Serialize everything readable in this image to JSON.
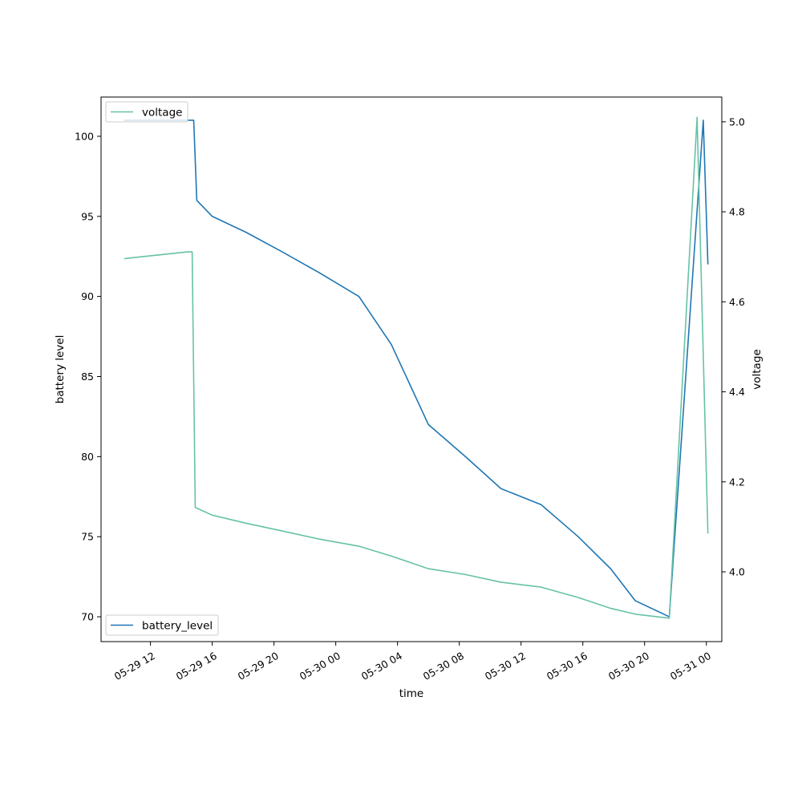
{
  "chart_data": {
    "type": "line",
    "xlabel": "time",
    "ylabel_left": "battery level",
    "ylabel_right": "voltage",
    "x_range": [
      "2025-05-29T08:48",
      "2025-05-31T01:00"
    ],
    "x_ticks": [
      {
        "t": "2025-05-29T12:00",
        "label": "05-29 12"
      },
      {
        "t": "2025-05-29T16:00",
        "label": "05-29 16"
      },
      {
        "t": "2025-05-29T20:00",
        "label": "05-29 20"
      },
      {
        "t": "2025-05-30T00:00",
        "label": "05-30 00"
      },
      {
        "t": "2025-05-30T04:00",
        "label": "05-30 04"
      },
      {
        "t": "2025-05-30T08:00",
        "label": "05-30 08"
      },
      {
        "t": "2025-05-30T12:00",
        "label": "05-30 12"
      },
      {
        "t": "2025-05-30T16:00",
        "label": "05-30 16"
      },
      {
        "t": "2025-05-30T20:00",
        "label": "05-30 20"
      },
      {
        "t": "2025-05-31T00:00",
        "label": "05-31 00"
      }
    ],
    "ylim_left": [
      68.45,
      102.45
    ],
    "y_ticks_left": [
      70,
      75,
      80,
      85,
      90,
      95,
      100
    ],
    "ylim_right": [
      3.845,
      5.055
    ],
    "y_ticks_right": [
      4.0,
      4.2,
      4.4,
      4.6,
      4.8,
      5.0
    ],
    "grid": false,
    "series": [
      {
        "name": "battery_level",
        "axis": "left",
        "color": "#1f77b4",
        "legend_position": "lower-left",
        "points": [
          [
            "2025-05-29T10:18",
            101
          ],
          [
            "2025-05-29T14:24",
            101
          ],
          [
            "2025-05-29T14:48",
            101
          ],
          [
            "2025-05-29T15:00",
            96
          ],
          [
            "2025-05-29T16:00",
            95
          ],
          [
            "2025-05-29T18:12",
            94
          ],
          [
            "2025-05-29T20:30",
            92.8
          ],
          [
            "2025-05-29T22:54",
            91.5
          ],
          [
            "2025-05-30T01:30",
            90
          ],
          [
            "2025-05-30T03:36",
            87
          ],
          [
            "2025-05-30T06:00",
            82
          ],
          [
            "2025-05-30T08:24",
            80
          ],
          [
            "2025-05-30T10:42",
            78
          ],
          [
            "2025-05-30T13:18",
            77
          ],
          [
            "2025-05-30T15:42",
            75
          ],
          [
            "2025-05-30T17:48",
            73
          ],
          [
            "2025-05-30T19:24",
            71
          ],
          [
            "2025-05-30T21:36",
            70
          ],
          [
            "2025-05-30T23:48",
            101
          ],
          [
            "2025-05-31T00:06",
            92
          ]
        ]
      },
      {
        "name": "voltage",
        "axis": "right",
        "color": "#66c2a5",
        "legend_position": "upper-left",
        "points": [
          [
            "2025-05-29T10:18",
            4.696
          ],
          [
            "2025-05-29T14:24",
            4.711
          ],
          [
            "2025-05-29T14:42",
            4.711
          ],
          [
            "2025-05-29T14:54",
            4.143
          ],
          [
            "2025-05-29T16:00",
            4.126
          ],
          [
            "2025-05-29T18:12",
            4.108
          ],
          [
            "2025-05-29T20:30",
            4.091
          ],
          [
            "2025-05-29T22:54",
            4.073
          ],
          [
            "2025-05-30T01:30",
            4.057
          ],
          [
            "2025-05-30T03:36",
            4.035
          ],
          [
            "2025-05-30T06:00",
            4.007
          ],
          [
            "2025-05-30T08:24",
            3.994
          ],
          [
            "2025-05-30T10:42",
            3.977
          ],
          [
            "2025-05-30T13:18",
            3.966
          ],
          [
            "2025-05-30T15:42",
            3.943
          ],
          [
            "2025-05-30T17:48",
            3.919
          ],
          [
            "2025-05-30T19:24",
            3.906
          ],
          [
            "2025-05-30T21:36",
            3.897
          ],
          [
            "2025-05-30T23:24",
            5.01
          ],
          [
            "2025-05-31T00:06",
            4.085
          ]
        ]
      }
    ]
  }
}
